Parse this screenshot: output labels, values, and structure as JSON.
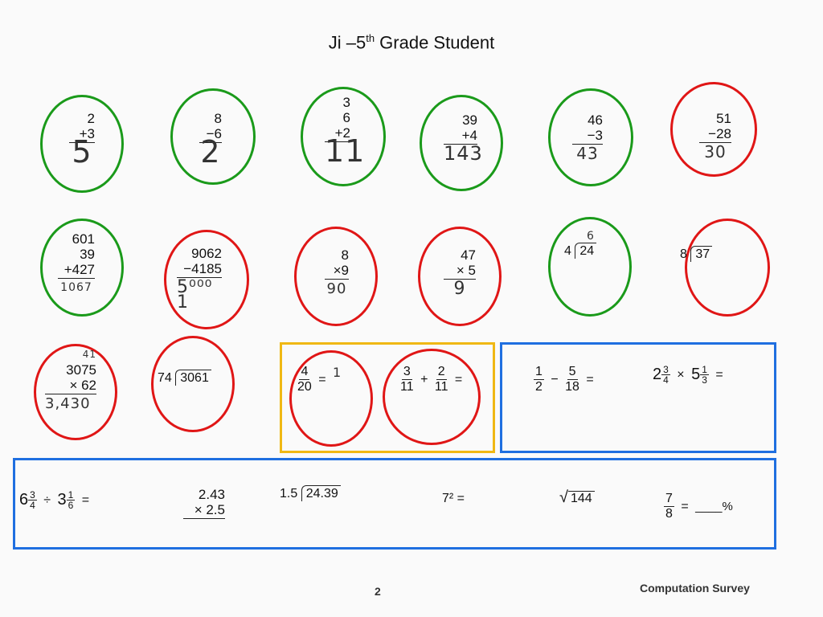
{
  "title": {
    "name": "Ji –5",
    "sup": "th",
    "rest": " Grade Student"
  },
  "row1": {
    "p1": {
      "a": "2",
      "b": "+3",
      "ans": "5"
    },
    "p2": {
      "a": "8",
      "b": "−6",
      "ans": "2"
    },
    "p3": {
      "a": "3",
      "b": "6",
      "c": "+2",
      "ans": "11"
    },
    "p4": {
      "a": "39",
      "b": "+4",
      "ans": "143"
    },
    "p5": {
      "a": "46",
      "b": "−3",
      "ans": "43"
    },
    "p6": {
      "a": "51",
      "b": "−28",
      "ans": "30"
    }
  },
  "row2": {
    "p1": {
      "a": "601",
      "b": "39",
      "c": "+427",
      "ans": "1067"
    },
    "p2": {
      "a": "9062",
      "b": "−4185",
      "ans": "5⁰⁰⁰ 1"
    },
    "p3": {
      "a": "8",
      "b": "×9",
      "ans": "90"
    },
    "p4": {
      "a": "47",
      "b": "× 5",
      "ans": "9"
    },
    "p5": {
      "divisor": "4",
      "dividend": "24",
      "ans": "6"
    },
    "p6": {
      "divisor": "8",
      "dividend": "37"
    }
  },
  "row3": {
    "p1": {
      "carry": "41",
      "a": "3075",
      "b": "×   62",
      "ans": "3,430"
    },
    "p2": {
      "divisor": "74",
      "dividend": "3061"
    }
  },
  "yellow": {
    "f1n": "4",
    "f1d": "20",
    "eq": "=",
    "ans": "1",
    "f2n": "3",
    "f2d": "11",
    "plus": "+",
    "f3n": "2",
    "f3d": "11",
    "eq2": "="
  },
  "blue1": {
    "a_n": "1",
    "a_d": "2",
    "minus": "−",
    "b_n": "5",
    "b_d": "18",
    "eq": "=",
    "m1w": "2",
    "m1n": "3",
    "m1d": "4",
    "times": "×",
    "m2w": "5",
    "m2n": "1",
    "m2d": "3",
    "eq2": "="
  },
  "blue2": {
    "d1w": "6",
    "d1n": "3",
    "d1d": "4",
    "div": "÷",
    "d2w": "3",
    "d2n": "1",
    "d2d": "6",
    "eq": "=",
    "m_a": "2.43",
    "m_b": "×  2.5",
    "ld_divisor": "1.5",
    "ld_dividend": "24.39",
    "pow": "7²  =",
    "sqrt_sym": "√",
    "sqrt_val": "144",
    "pct_n": "7",
    "pct_d": "8",
    "pct_eq": "=",
    "pct_blank": "____%"
  },
  "footer": {
    "page": "2",
    "label": "Computation Survey"
  },
  "colors": {
    "correct": "#1a9a1a",
    "incorrect": "#e01616",
    "yellow": "#f0b814",
    "blue": "#1f6fe0"
  }
}
